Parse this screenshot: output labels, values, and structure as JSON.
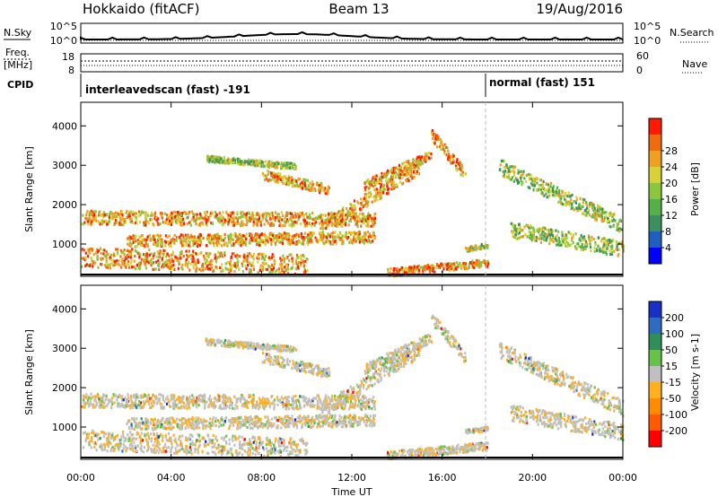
{
  "header": {
    "station": "Hokkaido (fitACF)",
    "beam": "Beam 13",
    "date": "19/Aug/2016"
  },
  "left_labels": {
    "nsky": "N.Sky",
    "freq_top": "Freq.",
    "freq_unit": "[MHz]",
    "cpid": "CPID"
  },
  "right_labels": {
    "nsearch": "N.Search",
    "nave": "Nave"
  },
  "noise_panel": {
    "left_ticks": [
      "10^5",
      "10^0"
    ],
    "right_ticks": [
      "10^5",
      "10^0"
    ]
  },
  "freq_panel": {
    "left_ticks": [
      "18",
      "8"
    ],
    "right_ticks": [
      "60",
      "0"
    ]
  },
  "cpid_panel": {
    "segments": [
      {
        "label": "interleavedscan (fast) -191",
        "start": 0,
        "end": 18
      },
      {
        "label": "normal (fast) 151",
        "start": 18,
        "end": 24
      }
    ]
  },
  "chart_data": [
    {
      "type": "heatmap",
      "name": "power",
      "ylabel": "Slant Range [km]",
      "ylim": [
        180,
        4600
      ],
      "yticks": [
        "1000",
        "2000",
        "3000",
        "4000"
      ],
      "colorbar_label": "Power [dB]",
      "colorbar_ticks": [
        "4",
        "8",
        "12",
        "16",
        "20",
        "24",
        "28"
      ],
      "colorbar_colors": [
        "#0000ff",
        "#1f5fbf",
        "#3d8f5e",
        "#55b04a",
        "#8cc63f",
        "#d7d23a",
        "#f0a020",
        "#f06a10",
        "#ff1a00"
      ]
    },
    {
      "type": "heatmap",
      "name": "velocity",
      "xlabel": "Time UT",
      "xlim": [
        0,
        24
      ],
      "xticks": [
        "00:00",
        "04:00",
        "08:00",
        "12:00",
        "16:00",
        "20:00",
        "00:00"
      ],
      "ylabel": "Slant Range [km]",
      "ylim": [
        180,
        4600
      ],
      "yticks": [
        "1000",
        "2000",
        "3000",
        "4000"
      ],
      "colorbar_label": "Velocity [m s-1]",
      "colorbar_ticks": [
        "200",
        "100",
        "50",
        "15",
        "-15",
        "-50",
        "-100",
        "-200"
      ],
      "colorbar_colors": [
        "#1a2fc8",
        "#2d6cc0",
        "#2f8f5a",
        "#68c24a",
        "#c0c0c0",
        "#ffb020",
        "#ff8c00",
        "#ff5a00",
        "#ff0000"
      ]
    }
  ]
}
